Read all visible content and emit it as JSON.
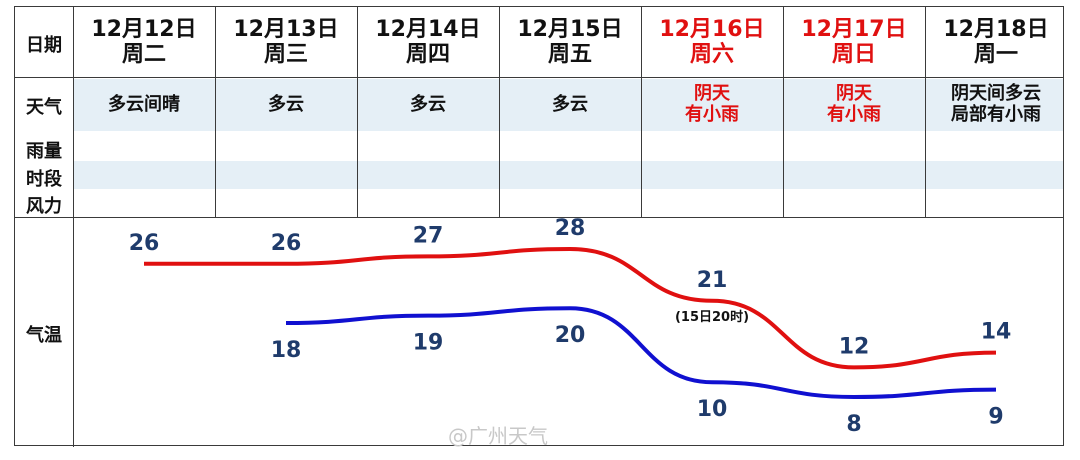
{
  "row_labels": {
    "date": "日期",
    "weather": "天气",
    "rain1": "雨量",
    "rain2": "时段",
    "rain3": "风力",
    "temp": "气温"
  },
  "days": [
    {
      "date": "12月12日",
      "weekday": "周二",
      "weather": "多云间晴",
      "weekend": false
    },
    {
      "date": "12月13日",
      "weekday": "周三",
      "weather": "多云",
      "weekend": false
    },
    {
      "date": "12月14日",
      "weekday": "周四",
      "weather": "多云",
      "weekend": false
    },
    {
      "date": "12月15日",
      "weekday": "周五",
      "weather": "多云",
      "weekend": false
    },
    {
      "date": "12月16日",
      "weekday": "周六",
      "weather": "阴天\n有小雨",
      "weekend": true
    },
    {
      "date": "12月17日",
      "weekday": "周日",
      "weather": "阴天\n有小雨",
      "weekend": true
    },
    {
      "date": "12月18日",
      "weekday": "周一",
      "weather": "阴天间多云\n局部有小雨",
      "weekend": false
    }
  ],
  "colors": {
    "high": "#e01010",
    "low": "#1010d0",
    "weekend": "#e01010",
    "label": "#1f3b6b",
    "band": "#e5eff6"
  },
  "chart_data": {
    "type": "line",
    "categories": [
      "12月12日",
      "12月13日",
      "12月14日",
      "12月15日",
      "12月16日",
      "12月17日",
      "12月18日"
    ],
    "series": [
      {
        "values": [
          26,
          26,
          27,
          28,
          21,
          12,
          14
        ]
      },
      {
        "values": [
          null,
          18,
          19,
          20,
          10,
          8,
          9
        ]
      }
    ],
    "annotations": [
      {
        "category": "12月16日",
        "text": "(15日20时)"
      }
    ],
    "grid": false
  },
  "watermark": "@广州天气"
}
